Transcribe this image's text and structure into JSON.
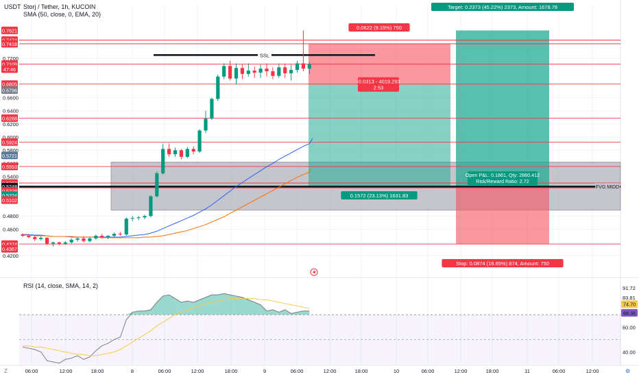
{
  "header": {
    "currency": "USDT",
    "title": "Storj / Tether, 1h, KUCOIN",
    "indicator": "SMA (50, close, 0, EMA, 20)"
  },
  "price_badges": [
    {
      "label": "0.7621",
      "price": 0.7621,
      "color": "#f23645"
    },
    {
      "label": "0.7474",
      "price": 0.7474,
      "color": "#f23645"
    },
    {
      "label": "0.7418",
      "price": 0.7418,
      "color": "#f23645"
    },
    {
      "label": "0.7109",
      "price": 0.7109,
      "color": "#f23645"
    },
    {
      "label": "47:46",
      "price": 0.7032,
      "color": "#f23645"
    },
    {
      "label": "0.6805",
      "price": 0.6805,
      "color": "#f23645"
    },
    {
      "label": "0.6796",
      "price": 0.6715,
      "color": "#787b86"
    },
    {
      "label": "0.6288",
      "price": 0.6288,
      "color": "#f23645"
    },
    {
      "label": "0.5924",
      "price": 0.5924,
      "color": "#f23645"
    },
    {
      "label": "0.5721",
      "price": 0.5721,
      "color": "#5b7a99"
    },
    {
      "label": "0.5553",
      "price": 0.5553,
      "color": "#f23645"
    },
    {
      "label": "0.5302",
      "price": 0.5302,
      "color": "#f23645"
    },
    {
      "label": "0.5248",
      "price": 0.5248,
      "color": "#131722"
    },
    {
      "label": "0.5228",
      "price": 0.5182,
      "color": "#f23645"
    },
    {
      "label": "0.5224",
      "price": 0.5116,
      "color": "#089981"
    },
    {
      "label": "0.5102",
      "price": 0.5042,
      "color": "#f23645"
    },
    {
      "label": "0.4374",
      "price": 0.4374,
      "color": "#f23645"
    },
    {
      "label": "0.4367",
      "price": 0.4302,
      "color": "#f23645"
    }
  ],
  "y_ticks": [
    "0.7200",
    "0.6600",
    "0.6400",
    "0.6200",
    "0.6000",
    "0.5800",
    "0.5600",
    "0.5400",
    "0.4800",
    "0.4600",
    "0.4200"
  ],
  "x_ticks": [
    "06:00",
    "12:00",
    "18:00",
    "8",
    "06:00",
    "12:00",
    "18:00",
    "9",
    "06:00",
    "12:00",
    "18:00",
    "10",
    "06:00",
    "12:00",
    "18:00",
    "11",
    "06:00",
    "12:00"
  ],
  "annotations": {
    "ssl": "SSL",
    "fvg": "FVG MIDD",
    "target": "Target: 0.2373 (45.22%) 2373, Amount: 1678.78",
    "short_top": "0.0622 (9.15%) 750",
    "short_mid1": "-0.0313 - 4019.293",
    "short_mid2": "2.53",
    "long_mid": "0.1572 (23.13%) 1631.83",
    "open_pnl1": "Open P&L: 0.1861, Qty: 2860.412",
    "open_pnl2": "Risk/Reward Ratio: 2.72",
    "stop": "Stop: 0.0874 (16.65%) 874, Amount: 750"
  },
  "rsi": {
    "title": "RSI (14, close, SMA, 14, 2)",
    "ticks": [
      "91.72",
      "83.81",
      "60.00",
      "40.00"
    ],
    "badges": [
      {
        "label": "74.70",
        "color": "#f7c948"
      },
      {
        "label": "68.38",
        "color": "#7e57c2"
      }
    ]
  },
  "colors": {
    "up": "#089981",
    "down": "#f23645",
    "ema": "#2962ff",
    "sma": "#ff6d00",
    "zone": "#b2b5be"
  },
  "chart_data": {
    "type": "candlestick",
    "symbol": "Storj / Tether",
    "interval": "1h",
    "ylim": [
      0.4,
      0.8
    ],
    "candles": [
      [
        0.452,
        0.454,
        0.448,
        0.45
      ],
      [
        0.45,
        0.452,
        0.446,
        0.448
      ],
      [
        0.448,
        0.45,
        0.442,
        0.445
      ],
      [
        0.445,
        0.449,
        0.443,
        0.447
      ],
      [
        0.447,
        0.448,
        0.436,
        0.438
      ],
      [
        0.438,
        0.441,
        0.434,
        0.44
      ],
      [
        0.44,
        0.441,
        0.436,
        0.438
      ],
      [
        0.438,
        0.442,
        0.436,
        0.44
      ],
      [
        0.44,
        0.446,
        0.438,
        0.444
      ],
      [
        0.444,
        0.448,
        0.441,
        0.446
      ],
      [
        0.446,
        0.449,
        0.44,
        0.442
      ],
      [
        0.442,
        0.448,
        0.44,
        0.446
      ],
      [
        0.446,
        0.452,
        0.444,
        0.45
      ],
      [
        0.45,
        0.453,
        0.446,
        0.448
      ],
      [
        0.448,
        0.451,
        0.445,
        0.45
      ],
      [
        0.45,
        0.455,
        0.448,
        0.453
      ],
      [
        0.453,
        0.456,
        0.45,
        0.452
      ],
      [
        0.452,
        0.478,
        0.45,
        0.476
      ],
      [
        0.476,
        0.48,
        0.472,
        0.477
      ],
      [
        0.477,
        0.48,
        0.474,
        0.478
      ],
      [
        0.478,
        0.482,
        0.475,
        0.48
      ],
      [
        0.48,
        0.512,
        0.478,
        0.51
      ],
      [
        0.51,
        0.548,
        0.508,
        0.545
      ],
      [
        0.545,
        0.59,
        0.543,
        0.582
      ],
      [
        0.582,
        0.59,
        0.57,
        0.574
      ],
      [
        0.574,
        0.584,
        0.57,
        0.58
      ],
      [
        0.58,
        0.582,
        0.566,
        0.57
      ],
      [
        0.57,
        0.585,
        0.568,
        0.582
      ],
      [
        0.582,
        0.586,
        0.574,
        0.578
      ],
      [
        0.578,
        0.612,
        0.576,
        0.61
      ],
      [
        0.61,
        0.64,
        0.606,
        0.628
      ],
      [
        0.628,
        0.66,
        0.626,
        0.658
      ],
      [
        0.658,
        0.695,
        0.655,
        0.692
      ],
      [
        0.692,
        0.712,
        0.688,
        0.708
      ],
      [
        0.708,
        0.716,
        0.686,
        0.689
      ],
      [
        0.689,
        0.712,
        0.68,
        0.705
      ],
      [
        0.705,
        0.71,
        0.688,
        0.696
      ],
      [
        0.696,
        0.712,
        0.692,
        0.701
      ],
      [
        0.701,
        0.707,
        0.69,
        0.698
      ],
      [
        0.698,
        0.71,
        0.69,
        0.704
      ],
      [
        0.704,
        0.712,
        0.692,
        0.7
      ],
      [
        0.7,
        0.706,
        0.688,
        0.693
      ],
      [
        0.693,
        0.712,
        0.69,
        0.706
      ],
      [
        0.706,
        0.712,
        0.69,
        0.697
      ],
      [
        0.697,
        0.71,
        0.686,
        0.702
      ],
      [
        0.702,
        0.716,
        0.698,
        0.712
      ],
      [
        0.712,
        0.762,
        0.7,
        0.704
      ],
      [
        0.704,
        0.714,
        0.696,
        0.711
      ]
    ],
    "ema_50": [
      0.452,
      0.452,
      0.451,
      0.451,
      0.45,
      0.449,
      0.449,
      0.449,
      0.448,
      0.448,
      0.448,
      0.448,
      0.448,
      0.448,
      0.448,
      0.448,
      0.448,
      0.449,
      0.45,
      0.451,
      0.452,
      0.454,
      0.457,
      0.461,
      0.465,
      0.469,
      0.473,
      0.477,
      0.481,
      0.486,
      0.491,
      0.497,
      0.504,
      0.511,
      0.518,
      0.525,
      0.531,
      0.537,
      0.543,
      0.549,
      0.555,
      0.56,
      0.566,
      0.571,
      0.576,
      0.581,
      0.586,
      0.59
    ],
    "sma_ema_20": [
      0.451,
      0.451,
      0.45,
      0.45,
      0.45,
      0.449,
      0.449,
      0.449,
      0.449,
      0.448,
      0.448,
      0.448,
      0.448,
      0.447,
      0.447,
      0.447,
      0.447,
      0.447,
      0.447,
      0.447,
      0.448,
      0.448,
      0.449,
      0.45,
      0.452,
      0.454,
      0.456,
      0.458,
      0.461,
      0.464,
      0.467,
      0.471,
      0.475,
      0.479,
      0.484,
      0.489,
      0.494,
      0.499,
      0.504,
      0.509,
      0.514,
      0.519,
      0.524,
      0.529,
      0.534,
      0.539,
      0.543,
      0.547
    ],
    "levels": [
      0.7474,
      0.7418,
      0.7109,
      0.6805,
      0.6288,
      0.5924,
      0.5553,
      0.5302,
      0.5228,
      0.4374
    ],
    "fvg_zone": [
      0.489,
      0.562
    ],
    "fvg_mid": 0.5248,
    "ssl_level": 0.7247,
    "short_position": {
      "entry": 0.6796,
      "stop": 0.7418,
      "target": 0.5224
    },
    "long_position": {
      "entry": 0.5248,
      "stop": 0.4374,
      "target": 0.7621
    },
    "rsi_values": [
      44,
      43,
      42,
      40,
      33,
      32,
      31,
      34,
      35,
      37,
      34,
      36,
      41,
      45,
      47,
      50,
      52,
      66,
      72,
      73,
      73,
      74,
      80,
      85,
      86,
      83,
      80,
      81,
      80,
      82,
      84,
      86,
      86,
      87,
      86,
      85,
      84,
      82,
      80,
      78,
      73,
      74,
      72,
      74,
      71,
      72,
      73,
      73
    ],
    "rsi_ma": [
      45,
      45,
      44,
      44,
      43,
      42,
      41,
      40,
      39,
      38,
      38,
      37,
      37,
      38,
      39,
      40,
      42,
      45,
      48,
      51,
      54,
      57,
      61,
      64,
      67,
      70,
      72,
      74,
      76,
      77,
      79,
      80,
      81,
      82,
      83,
      83,
      83,
      83,
      83,
      82,
      82,
      81,
      80,
      79,
      78,
      77,
      76,
      75
    ],
    "rsi_ylim": [
      32,
      96
    ]
  }
}
